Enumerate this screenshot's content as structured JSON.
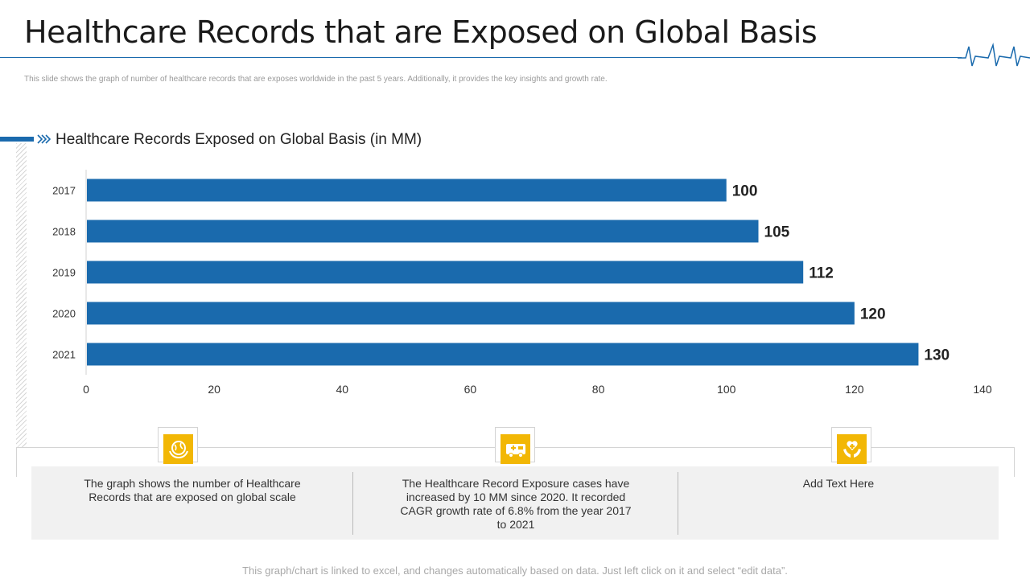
{
  "header": {
    "title": "Healthcare Records that are Exposed on Global Basis",
    "subtitle": "This slide shows the graph of number of healthcare records that are exposes worldwide in the past 5 years. Additionally, it provides the key insights and growth rate."
  },
  "chart_title": "Healthcare Records Exposed on Global Basis (in MM)",
  "chart_data": {
    "type": "bar",
    "orientation": "horizontal",
    "title": "Healthcare Records Exposed on Global Basis (in MM)",
    "categories": [
      "2017",
      "2018",
      "2019",
      "2020",
      "2021"
    ],
    "values": [
      100,
      105,
      112,
      120,
      130
    ],
    "xlim": [
      0,
      140
    ],
    "xticks": [
      0,
      20,
      40,
      60,
      80,
      100,
      120,
      140
    ],
    "xlabel": "",
    "ylabel": "",
    "bar_color": "#1a6aad",
    "grid": false,
    "data_labels": true
  },
  "insights": [
    {
      "icon": "globe-hands-icon",
      "text": "The graph shows the number of Healthcare Records that are exposed on global scale"
    },
    {
      "icon": "ambulance-icon",
      "text": "The Healthcare Record Exposure cases have increased by 10 MM since 2020. It recorded CAGR growth rate of 6.8% from the year 2017 to 2021"
    },
    {
      "icon": "heart-hands-icon",
      "text": "Add Text Here"
    }
  ],
  "footnote": "This graph/chart is linked to excel,  and changes automatically based on data. Just left click on it and select “edit data”.",
  "colors": {
    "accent": "#1a6aad",
    "icon_bg": "#f2b705",
    "panel_bg": "#f1f1f1"
  }
}
